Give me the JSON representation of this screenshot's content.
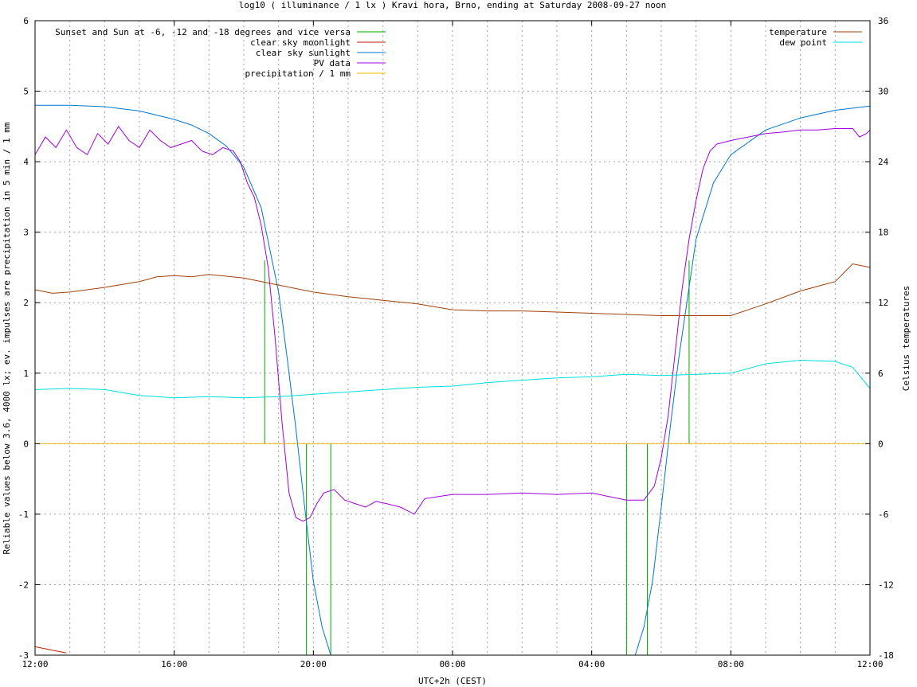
{
  "chart_data": {
    "type": "line",
    "title": "log10 ( illuminance / 1 lx ) Kravi hora, Brno, ending at Saturday 2008-09-27 noon",
    "xlabel": "UTC+2h (CEST)",
    "ylabel": "Reliable values below 3.6, 4000 lx; ev. impulses are precipitation in 5 min / 1 mm",
    "y2label": "Celsius temperatures",
    "xlim": [
      12,
      36
    ],
    "ylim": [
      -3,
      6
    ],
    "y2lim": [
      -18,
      36
    ],
    "x_ticks": [
      {
        "x": 12,
        "label": "12:00"
      },
      {
        "x": 16,
        "label": "16:00"
      },
      {
        "x": 20,
        "label": "20:00"
      },
      {
        "x": 24,
        "label": "00:00"
      },
      {
        "x": 28,
        "label": "04:00"
      },
      {
        "x": 32,
        "label": "08:00"
      },
      {
        "x": 36,
        "label": "12:00"
      }
    ],
    "y_ticks": [
      "-3",
      "-2",
      "-1",
      "0",
      "1",
      "2",
      "3",
      "4",
      "5",
      "6"
    ],
    "y2_ticks": [
      "-18",
      "-12",
      "-6",
      "0",
      "6",
      "12",
      "18",
      "24",
      "30",
      "36"
    ],
    "grid": "on",
    "legend_left": [
      {
        "name": "Sunset and Sun at -6, -12 and -18 degrees and vice versa",
        "color": "#00aa00"
      },
      {
        "name": "clear sky moonlight",
        "color": "#bb2200"
      },
      {
        "name": "clear sky sunlight",
        "color": "#0077cc"
      },
      {
        "name": "PV data",
        "color": "#a000e0"
      },
      {
        "name": "precipitation / 1 mm",
        "color": "#e8b800"
      }
    ],
    "legend_right": [
      {
        "name": "temperature",
        "color": "#a0400a"
      },
      {
        "name": "dew point",
        "color": "#00dddd"
      }
    ],
    "impulses": [
      {
        "x": 18.6,
        "y": 2.6
      },
      {
        "x": 19.2,
        "y": 0
      },
      {
        "x": 19.8,
        "y": -3
      },
      {
        "x": 20.5,
        "y": -3
      },
      {
        "x": 29.0,
        "y": -3
      },
      {
        "x": 29.6,
        "y": -3
      },
      {
        "x": 30.2,
        "y": 0
      },
      {
        "x": 30.8,
        "y": 2.6
      }
    ],
    "series": [
      {
        "name": "clear sky sunlight",
        "color": "#0077cc",
        "axis": "y1",
        "x": [
          12,
          13,
          14,
          15,
          16,
          16.5,
          17,
          17.5,
          18,
          18.5,
          19,
          19.25,
          19.5,
          19.75,
          20,
          20.25,
          20.5,
          29.25,
          29.5,
          29.75,
          30,
          30.25,
          30.5,
          31,
          31.5,
          32,
          33,
          34,
          35,
          36
        ],
        "y": [
          4.8,
          4.8,
          4.78,
          4.72,
          4.6,
          4.52,
          4.4,
          4.22,
          3.92,
          3.35,
          2.15,
          1.2,
          0.2,
          -0.9,
          -1.95,
          -2.6,
          -3.0,
          -3.0,
          -2.6,
          -1.95,
          -0.9,
          0.2,
          1.2,
          2.9,
          3.7,
          4.1,
          4.45,
          4.62,
          4.73,
          4.79
        ]
      },
      {
        "name": "clear sky moonlight",
        "color": "#bb2200",
        "axis": "y1",
        "x": [
          12,
          12.5,
          12.9
        ],
        "y": [
          -2.88,
          -2.93,
          -2.97
        ]
      },
      {
        "name": "PV data",
        "color": "#a000e0",
        "axis": "y1",
        "x": [
          12,
          12.3,
          12.6,
          12.9,
          13.2,
          13.5,
          13.8,
          14.1,
          14.4,
          14.7,
          15.0,
          15.3,
          15.6,
          15.9,
          16.2,
          16.5,
          16.8,
          17.1,
          17.4,
          17.7,
          17.9,
          18.1,
          18.3,
          18.5,
          18.7,
          18.9,
          19.1,
          19.3,
          19.5,
          19.7,
          19.9,
          20.1,
          20.3,
          20.6,
          20.9,
          21.2,
          21.5,
          21.8,
          22.1,
          22.5,
          22.9,
          23.2,
          23.6,
          24,
          25,
          26,
          27,
          28,
          28.5,
          29,
          29.5,
          29.8,
          30.0,
          30.2,
          30.4,
          30.6,
          30.8,
          31.0,
          31.2,
          31.4,
          31.6,
          32.0,
          32.5,
          33,
          33.5,
          34,
          34.5,
          35,
          35.5,
          35.7,
          35.9,
          36
        ],
        "y": [
          4.1,
          4.35,
          4.2,
          4.45,
          4.2,
          4.1,
          4.4,
          4.25,
          4.5,
          4.3,
          4.2,
          4.45,
          4.3,
          4.2,
          4.25,
          4.3,
          4.15,
          4.1,
          4.2,
          4.15,
          4.0,
          3.7,
          3.5,
          3.1,
          2.5,
          1.5,
          0.3,
          -0.7,
          -1.05,
          -1.1,
          -1.05,
          -0.85,
          -0.7,
          -0.65,
          -0.8,
          -0.85,
          -0.9,
          -0.82,
          -0.85,
          -0.9,
          -1.0,
          -0.78,
          -0.75,
          -0.72,
          -0.72,
          -0.7,
          -0.72,
          -0.7,
          -0.75,
          -0.8,
          -0.8,
          -0.6,
          -0.2,
          0.4,
          1.3,
          2.2,
          2.9,
          3.45,
          3.9,
          4.15,
          4.25,
          4.3,
          4.35,
          4.4,
          4.42,
          4.45,
          4.45,
          4.47,
          4.47,
          4.35,
          4.4,
          4.45
        ]
      },
      {
        "name": "precipitation / 1 mm",
        "color": "#e8b800",
        "axis": "y1",
        "x": [
          12,
          36
        ],
        "y": [
          0,
          0
        ]
      },
      {
        "name": "temperature",
        "color": "#a0400a",
        "axis": "y2",
        "x": [
          12,
          12.5,
          13,
          14,
          15,
          15.5,
          16,
          16.5,
          17,
          18,
          19,
          20,
          21,
          22,
          23,
          24,
          25,
          26,
          27,
          28,
          29,
          30,
          31,
          32,
          33,
          34,
          35,
          35.5,
          36
        ],
        "y": [
          13.1,
          12.8,
          12.9,
          13.3,
          13.8,
          14.2,
          14.3,
          14.2,
          14.4,
          14.1,
          13.5,
          12.9,
          12.5,
          12.2,
          11.9,
          11.4,
          11.3,
          11.3,
          11.2,
          11.1,
          11.0,
          10.9,
          10.9,
          10.9,
          11.9,
          13.0,
          13.8,
          15.3,
          15.0
        ]
      },
      {
        "name": "dew point",
        "color": "#00dddd",
        "axis": "y2",
        "x": [
          12,
          13,
          14,
          15,
          16,
          17,
          18,
          19,
          20,
          21,
          22,
          23,
          24,
          25,
          26,
          27,
          28,
          29,
          30,
          31,
          32,
          33,
          34,
          35,
          35.5,
          36
        ],
        "y": [
          4.6,
          4.7,
          4.6,
          4.1,
          3.9,
          4.0,
          3.9,
          4.0,
          4.2,
          4.4,
          4.6,
          4.8,
          4.9,
          5.2,
          5.4,
          5.6,
          5.7,
          5.9,
          5.8,
          5.9,
          6.0,
          6.8,
          7.1,
          7.0,
          6.5,
          4.7
        ]
      }
    ]
  }
}
